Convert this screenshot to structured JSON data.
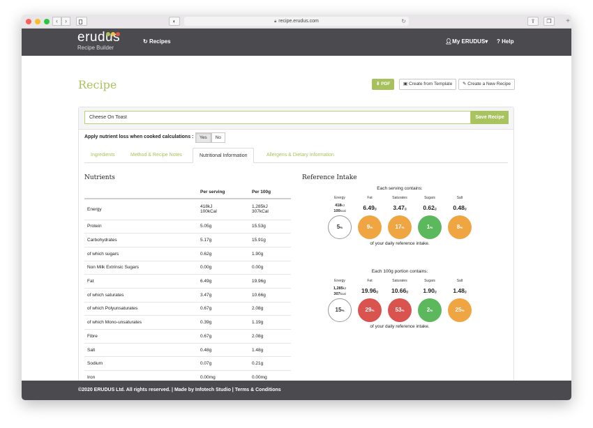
{
  "browser": {
    "url": "recipe.erudus.com",
    "back_icon": "chevron-left-icon",
    "forward_icon": "chevron-right-icon"
  },
  "header": {
    "logo_text": "erudus",
    "logo_sub": "Recipe Builder",
    "logo_dot_colors": [
      "#a9c35f",
      "#f2c14e",
      "#e0544c"
    ],
    "nav_recipes": "Recipes",
    "my_account": "My ERUDUS",
    "help": "Help"
  },
  "page": {
    "title": "Recipe",
    "buttons": {
      "pdf": "PDF",
      "create_template": "Create from Template",
      "create_new": "Create a New Recipe"
    },
    "recipe_name": "Cheese On Toast",
    "save_label": "Save Recipe",
    "nutrient_loss_label": "Apply nutrient loss when cooked calculations :",
    "yes": "Yes",
    "no": "No",
    "tabs": [
      {
        "label": "Ingredients",
        "active": false
      },
      {
        "label": "Method & Recipe Notes",
        "active": false
      },
      {
        "label": "Nutritional Information",
        "active": true
      },
      {
        "label": "Allergens & Dietary Information",
        "active": false
      }
    ]
  },
  "nutrients": {
    "heading": "Nutrients",
    "col_per_serving": "Per serving",
    "col_per_100g": "Per 100g",
    "rows": [
      {
        "name": "Energy",
        "serving": "418kJ",
        "serving2": "100kCal",
        "per100": "1,285kJ",
        "per100_2": "307kCal"
      },
      {
        "name": "Protein",
        "serving": "5.05g",
        "per100": "15.53g"
      },
      {
        "name": "Carbohydrates",
        "serving": "5.17g",
        "per100": "15.91g"
      },
      {
        "name": "of which sugars",
        "serving": "0.62g",
        "per100": "1.90g"
      },
      {
        "name": "Non Milk Extrinsic Sugars",
        "serving": "0.00g",
        "per100": "0.00g"
      },
      {
        "name": "Fat",
        "serving": "6.49g",
        "per100": "19.96g"
      },
      {
        "name": "of which saturates",
        "serving": "3.47g",
        "per100": "10.66g"
      },
      {
        "name": "of which Polyunsaturates",
        "serving": "0.67g",
        "per100": "2.08g"
      },
      {
        "name": "of which Mono-unsaturates",
        "serving": "0.39g",
        "per100": "1.19g"
      },
      {
        "name": "Fibre",
        "serving": "0.67g",
        "per100": "2.08g"
      },
      {
        "name": "Salt",
        "serving": "0.48g",
        "per100": "1.48g"
      },
      {
        "name": "Sodium",
        "serving": "0.07g",
        "per100": "0.21g"
      },
      {
        "name": "Iron",
        "serving": "0.00mg",
        "per100": "0.00mg"
      }
    ]
  },
  "reference": {
    "heading": "Reference Intake",
    "labels": [
      "Energy",
      "Fat",
      "Saturates",
      "Sugars",
      "Salt"
    ],
    "serving": {
      "caption": "Each serving contains:",
      "energy_kj": "418",
      "energy_kj_unit": "kJ",
      "energy_kcal": "100",
      "energy_kcal_unit": "kcal",
      "values": [
        {
          "value": "6.49",
          "unit": "g"
        },
        {
          "value": "3.47",
          "unit": "g"
        },
        {
          "value": "0.62",
          "unit": "g"
        },
        {
          "value": "0.48",
          "unit": "g"
        }
      ],
      "percents": [
        {
          "value": "5",
          "color": "#ffffff"
        },
        {
          "value": "9",
          "color": "#f0a543"
        },
        {
          "value": "17",
          "color": "#f0a543"
        },
        {
          "value": "1",
          "color": "#5cb85c"
        },
        {
          "value": "8",
          "color": "#f0a543"
        }
      ],
      "footer": "of your daily reference intake."
    },
    "per100": {
      "caption": "Each 100g portion contains:",
      "energy_kj": "1,285",
      "energy_kj_unit": "kJ",
      "energy_kcal": "307",
      "energy_kcal_unit": "kcal",
      "values": [
        {
          "value": "19.96",
          "unit": "g"
        },
        {
          "value": "10.66",
          "unit": "g"
        },
        {
          "value": "1.90",
          "unit": "g"
        },
        {
          "value": "1.48",
          "unit": "g"
        }
      ],
      "percents": [
        {
          "value": "15",
          "color": "#ffffff"
        },
        {
          "value": "29",
          "color": "#d9534f"
        },
        {
          "value": "53",
          "color": "#d9534f"
        },
        {
          "value": "2",
          "color": "#5cb85c"
        },
        {
          "value": "25",
          "color": "#f0a543"
        }
      ],
      "footer": "of your daily reference intake."
    },
    "percent_unit": "%"
  },
  "footer": {
    "text": "©2020 ERUDUS Ltd. All rights reserved. | Made by Infotech Studio | Terms & Conditions"
  },
  "help_button": "?"
}
